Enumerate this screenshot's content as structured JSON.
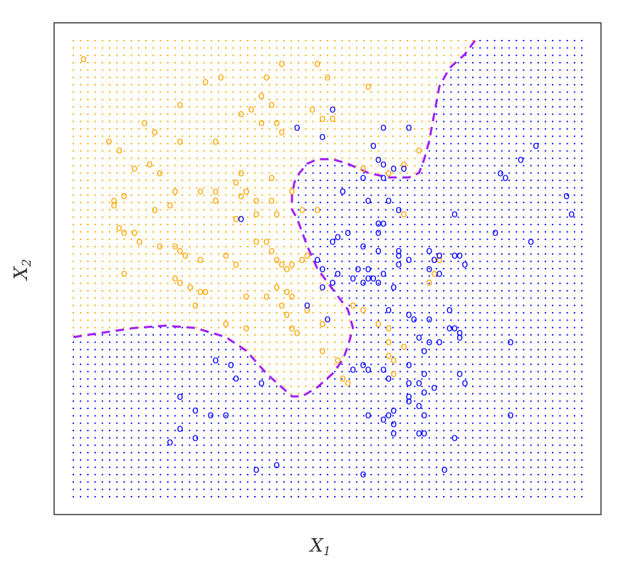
{
  "chart_data": {
    "type": "scatter",
    "title": "",
    "xlabel": "X",
    "xlabel_sub": "1",
    "ylabel": "X",
    "ylabel_sub": "2",
    "xlim": [
      0,
      100
    ],
    "ylim": [
      0,
      100
    ],
    "grid": false,
    "ticks": false,
    "point_marker": "o",
    "colors": {
      "class_orange": "#FFA500",
      "class_blue": "#0000FF",
      "boundary": "#A020F0"
    },
    "series": [
      {
        "name": "",
        "color": "#FFA500",
        "points": [
          [
            2,
            96
          ],
          [
            38,
            92
          ],
          [
            41,
            95
          ],
          [
            26,
            91
          ],
          [
            29,
            92
          ],
          [
            48,
            95
          ],
          [
            50,
            92
          ],
          [
            58,
            90
          ],
          [
            21,
            86
          ],
          [
            35,
            85
          ],
          [
            39,
            86
          ],
          [
            47,
            85
          ],
          [
            37,
            88
          ],
          [
            33,
            84
          ],
          [
            37,
            82
          ],
          [
            51,
            83
          ],
          [
            49,
            83
          ],
          [
            14,
            82
          ],
          [
            16,
            80
          ],
          [
            21,
            78
          ],
          [
            28,
            78
          ],
          [
            41,
            80
          ],
          [
            40,
            82
          ],
          [
            7,
            78
          ],
          [
            9,
            76
          ],
          [
            12,
            72
          ],
          [
            15,
            73
          ],
          [
            17,
            71
          ],
          [
            20,
            67
          ],
          [
            25,
            67
          ],
          [
            32,
            69
          ],
          [
            28,
            67
          ],
          [
            33,
            66
          ],
          [
            34,
            67
          ],
          [
            36,
            65
          ],
          [
            39,
            65
          ],
          [
            57,
            72
          ],
          [
            62,
            71
          ],
          [
            65,
            73
          ],
          [
            68,
            76
          ],
          [
            8,
            65
          ],
          [
            8,
            64
          ],
          [
            10,
            66
          ],
          [
            16,
            63
          ],
          [
            19,
            64
          ],
          [
            28,
            65
          ],
          [
            32,
            61
          ],
          [
            36,
            62
          ],
          [
            40,
            62
          ],
          [
            45,
            63
          ],
          [
            48,
            63
          ],
          [
            9,
            59
          ],
          [
            10,
            58
          ],
          [
            12,
            58
          ],
          [
            13,
            56
          ],
          [
            17,
            55
          ],
          [
            20,
            55
          ],
          [
            21,
            54
          ],
          [
            22,
            53
          ],
          [
            25,
            52
          ],
          [
            30,
            53
          ],
          [
            32,
            51
          ],
          [
            36,
            56
          ],
          [
            38,
            56
          ],
          [
            39,
            54
          ],
          [
            40,
            52
          ],
          [
            41,
            51
          ],
          [
            42,
            50
          ],
          [
            43,
            51
          ],
          [
            45,
            52
          ],
          [
            46,
            53
          ],
          [
            10,
            49
          ],
          [
            20,
            48
          ],
          [
            21,
            47
          ],
          [
            23,
            46
          ],
          [
            25,
            45
          ],
          [
            26,
            45
          ],
          [
            24,
            42
          ],
          [
            34,
            44
          ],
          [
            38,
            44
          ],
          [
            40,
            46
          ],
          [
            42,
            45
          ],
          [
            43,
            44
          ],
          [
            41,
            42
          ],
          [
            42,
            40
          ],
          [
            46,
            41
          ],
          [
            49,
            38
          ],
          [
            30,
            38
          ],
          [
            34,
            37
          ],
          [
            43,
            37
          ],
          [
            44,
            36
          ],
          [
            49,
            32
          ],
          [
            52,
            30
          ],
          [
            53,
            26
          ],
          [
            54,
            25
          ],
          [
            60,
            38
          ],
          [
            62,
            37
          ],
          [
            62,
            34
          ],
          [
            63,
            30
          ],
          [
            63,
            27
          ],
          [
            65,
            33
          ],
          [
            72,
            52
          ],
          [
            72,
            53
          ],
          [
            71,
            49
          ],
          [
            70,
            47
          ],
          [
            71,
            52
          ],
          [
            55,
            42
          ],
          [
            57,
            41
          ],
          [
            65,
            62
          ],
          [
            62,
            31
          ],
          [
            33,
            71
          ],
          [
            39,
            70
          ],
          [
            43,
            67
          ]
        ]
      },
      {
        "name": "",
        "color": "#0000FF",
        "points": [
          [
            44,
            81
          ],
          [
            49,
            79
          ],
          [
            51,
            85
          ],
          [
            61,
            81
          ],
          [
            59,
            77
          ],
          [
            60,
            74
          ],
          [
            61,
            73
          ],
          [
            63,
            72
          ],
          [
            66,
            81
          ],
          [
            57,
            70
          ],
          [
            61,
            70
          ],
          [
            65,
            72
          ],
          [
            53,
            67
          ],
          [
            58,
            65
          ],
          [
            62,
            65
          ],
          [
            64,
            63
          ],
          [
            33,
            61
          ],
          [
            54,
            58
          ],
          [
            51,
            56
          ],
          [
            52,
            57
          ],
          [
            57,
            55
          ],
          [
            60,
            54
          ],
          [
            64,
            54
          ],
          [
            61,
            60
          ],
          [
            60,
            58
          ],
          [
            48,
            52
          ],
          [
            49,
            50
          ],
          [
            52,
            49
          ],
          [
            56,
            50
          ],
          [
            58,
            50
          ],
          [
            59,
            48
          ],
          [
            61,
            49
          ],
          [
            64,
            51
          ],
          [
            66,
            52
          ],
          [
            64,
            53
          ],
          [
            70,
            54
          ],
          [
            75,
            53
          ],
          [
            77,
            51
          ],
          [
            57,
            47
          ],
          [
            49,
            46
          ],
          [
            51,
            47
          ],
          [
            55,
            48
          ],
          [
            58,
            48
          ],
          [
            60,
            47
          ],
          [
            63,
            46
          ],
          [
            72,
            53
          ],
          [
            71,
            52
          ],
          [
            76,
            53
          ],
          [
            70,
            50
          ],
          [
            72,
            49
          ],
          [
            46,
            42
          ],
          [
            50,
            39
          ],
          [
            62,
            41
          ],
          [
            66,
            40
          ],
          [
            67,
            39
          ],
          [
            70,
            39
          ],
          [
            74,
            41
          ],
          [
            75,
            37
          ],
          [
            68,
            35
          ],
          [
            70,
            34
          ],
          [
            72,
            34
          ],
          [
            74,
            37
          ],
          [
            76,
            36
          ],
          [
            69,
            32
          ],
          [
            76,
            35
          ],
          [
            86,
            34
          ],
          [
            28,
            30
          ],
          [
            31,
            29
          ],
          [
            32,
            26
          ],
          [
            37,
            25
          ],
          [
            21,
            22
          ],
          [
            24,
            19
          ],
          [
            27,
            18
          ],
          [
            30,
            18
          ],
          [
            55,
            28
          ],
          [
            57,
            29
          ],
          [
            58,
            28
          ],
          [
            61,
            28
          ],
          [
            66,
            29
          ],
          [
            62,
            26
          ],
          [
            66,
            25
          ],
          [
            69,
            27
          ],
          [
            68,
            25
          ],
          [
            71,
            24
          ],
          [
            69,
            23
          ],
          [
            76,
            27
          ],
          [
            77,
            25
          ],
          [
            66,
            22
          ],
          [
            66,
            21
          ],
          [
            58,
            18
          ],
          [
            61,
            17
          ],
          [
            63,
            19
          ],
          [
            68,
            20
          ],
          [
            69,
            18
          ],
          [
            63,
            16
          ],
          [
            62,
            18
          ],
          [
            86,
            18
          ],
          [
            21,
            15
          ],
          [
            24,
            13
          ],
          [
            63,
            14
          ],
          [
            68,
            14
          ],
          [
            69,
            14
          ],
          [
            75,
            13
          ],
          [
            19,
            12
          ],
          [
            40,
            7
          ],
          [
            57,
            5
          ],
          [
            73,
            6
          ],
          [
            36,
            6
          ],
          [
            88,
            74
          ],
          [
            91,
            77
          ],
          [
            98,
            62
          ],
          [
            97,
            66
          ],
          [
            84,
            71
          ],
          [
            85,
            70
          ],
          [
            83,
            58
          ],
          [
            90,
            56
          ],
          [
            60,
            60
          ],
          [
            75,
            62
          ]
        ]
      }
    ],
    "decision_boundary": [
      [
        0,
        35
      ],
      [
        6,
        36
      ],
      [
        12,
        37
      ],
      [
        18,
        37.5
      ],
      [
        24,
        37
      ],
      [
        30,
        35
      ],
      [
        34,
        32
      ],
      [
        38,
        27
      ],
      [
        41,
        24
      ],
      [
        43,
        22
      ],
      [
        45,
        22
      ],
      [
        48,
        24
      ],
      [
        51,
        27
      ],
      [
        53,
        30
      ],
      [
        54,
        33
      ],
      [
        55,
        37
      ],
      [
        54,
        41
      ],
      [
        52,
        44
      ],
      [
        50,
        47
      ],
      [
        48,
        50
      ],
      [
        46,
        55
      ],
      [
        45,
        58
      ],
      [
        44,
        61
      ],
      [
        43,
        63
      ],
      [
        43,
        66
      ],
      [
        43.5,
        69
      ],
      [
        44.5,
        71
      ],
      [
        46,
        73
      ],
      [
        48,
        74
      ],
      [
        51,
        74
      ],
      [
        54,
        73
      ],
      [
        58,
        71
      ],
      [
        62,
        70
      ],
      [
        66,
        70
      ],
      [
        68,
        71
      ],
      [
        69,
        74
      ],
      [
        70,
        78
      ],
      [
        71,
        84
      ],
      [
        72,
        90
      ],
      [
        74,
        94
      ],
      [
        77,
        97
      ],
      [
        79,
        100
      ]
    ]
  }
}
